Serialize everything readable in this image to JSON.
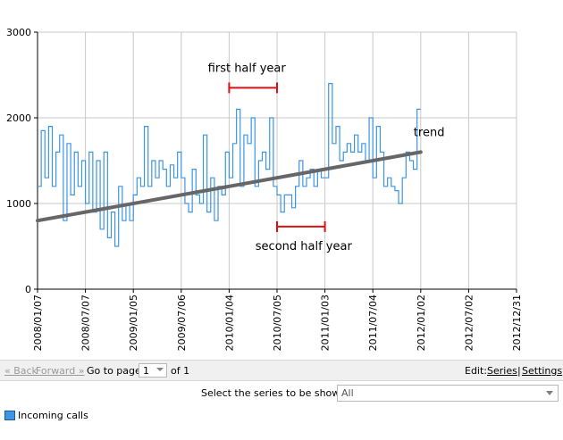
{
  "chart_data": {
    "type": "line",
    "y_ticks": [
      "0",
      "1000",
      "2000",
      "3000"
    ],
    "ylim": [
      0,
      3000
    ],
    "x_ticks": [
      "2008/01/07",
      "2008/07/07",
      "2009/01/05",
      "2009/07/06",
      "2010/01/04",
      "2010/07/05",
      "2011/01/03",
      "2011/07/04",
      "2012/01/02",
      "2012/07/02",
      "2012/12/31"
    ],
    "xlim": [
      "2008/01/07",
      "2012/12/31"
    ],
    "grid": true,
    "series": [
      {
        "name": "Incoming calls",
        "color": "#3d95e6",
        "step": true,
        "x": [
          "2008/01/07",
          "2008/01/21",
          "2008/02/04",
          "2008/02/18",
          "2008/03/03",
          "2008/03/17",
          "2008/03/31",
          "2008/04/14",
          "2008/04/28",
          "2008/05/12",
          "2008/05/26",
          "2008/06/09",
          "2008/06/23",
          "2008/07/07",
          "2008/07/21",
          "2008/08/04",
          "2008/08/18",
          "2008/09/01",
          "2008/09/15",
          "2008/09/29",
          "2008/10/13",
          "2008/10/27",
          "2008/11/10",
          "2008/11/24",
          "2008/12/08",
          "2008/12/22",
          "2009/01/05",
          "2009/01/19",
          "2009/02/02",
          "2009/02/16",
          "2009/03/02",
          "2009/03/16",
          "2009/03/30",
          "2009/04/13",
          "2009/04/27",
          "2009/05/11",
          "2009/05/25",
          "2009/06/08",
          "2009/06/22",
          "2009/07/06",
          "2009/07/20",
          "2009/08/03",
          "2009/08/17",
          "2009/08/31",
          "2009/09/14",
          "2009/09/28",
          "2009/10/12",
          "2009/10/26",
          "2009/11/09",
          "2009/11/23",
          "2009/12/07",
          "2009/12/21",
          "2010/01/04",
          "2010/01/18",
          "2010/02/01",
          "2010/02/15",
          "2010/03/01",
          "2010/03/15",
          "2010/03/29",
          "2010/04/12",
          "2010/04/26",
          "2010/05/10",
          "2010/05/24",
          "2010/06/07",
          "2010/06/21",
          "2010/07/05",
          "2010/07/19",
          "2010/08/02",
          "2010/08/16",
          "2010/08/30",
          "2010/09/13",
          "2010/09/27",
          "2010/10/11",
          "2010/10/25",
          "2010/11/08",
          "2010/11/22",
          "2010/12/06",
          "2010/12/20",
          "2011/01/03",
          "2011/01/17",
          "2011/01/31",
          "2011/02/14",
          "2011/02/28",
          "2011/03/14",
          "2011/03/28",
          "2011/04/11",
          "2011/04/25",
          "2011/05/09",
          "2011/05/23",
          "2011/06/06",
          "2011/06/20",
          "2011/07/04",
          "2011/07/18",
          "2011/08/01",
          "2011/08/15",
          "2011/08/29",
          "2011/09/12",
          "2011/09/26",
          "2011/10/10",
          "2011/10/24",
          "2011/11/07",
          "2011/11/21",
          "2011/12/05",
          "2011/12/19"
        ],
        "values": [
          1200,
          1850,
          1300,
          1900,
          1200,
          1600,
          1800,
          800,
          1700,
          1100,
          1600,
          1200,
          1500,
          1000,
          1600,
          900,
          1500,
          700,
          1600,
          600,
          900,
          500,
          1200,
          800,
          1000,
          800,
          1100,
          1300,
          1200,
          1900,
          1200,
          1500,
          1300,
          1500,
          1400,
          1200,
          1450,
          1300,
          1600,
          1300,
          1000,
          900,
          1400,
          1100,
          1000,
          1800,
          900,
          1300,
          800,
          1200,
          1100,
          1600,
          1300,
          1700,
          2100,
          1200,
          1800,
          1700,
          2000,
          1200,
          1500,
          1600,
          1400,
          2000,
          1200,
          1100,
          900,
          1100,
          1100,
          950,
          1200,
          1500,
          1200,
          1300,
          1400,
          1200,
          1400,
          1300,
          1300,
          2400,
          1700,
          1900,
          1500,
          1600,
          1700,
          1600,
          1800,
          1600,
          1700,
          1500,
          2000,
          1300,
          1900,
          1600,
          1200,
          1300,
          1200,
          1150,
          1000,
          1300,
          1600,
          1500,
          1400,
          2100
        ]
      },
      {
        "name": "trend",
        "color": "#666666",
        "x": [
          "2008/01/07",
          "2012/01/02"
        ],
        "values": [
          800,
          1600
        ]
      }
    ],
    "annotations": [
      {
        "text": "first half year",
        "start": "2010/01/04",
        "end": "2010/07/05",
        "y": 2350
      },
      {
        "text": "second half year",
        "start": "2010/07/05",
        "end": "2011/01/03",
        "y": 730
      },
      {
        "text": "trend"
      }
    ]
  },
  "navigation": {
    "back_label": "« Back",
    "forward_label": "Forward »",
    "goto_label": "Go to page",
    "page_value": "1",
    "of_label": "of 1",
    "edit_label": "Edit:",
    "series_link": "Series",
    "separator": "|",
    "settings_link": "Settings"
  },
  "series_selector": {
    "label": "Select the series to be shown:",
    "value": "All"
  },
  "legend": {
    "label": "Incoming calls",
    "color": "#3d95e6"
  }
}
